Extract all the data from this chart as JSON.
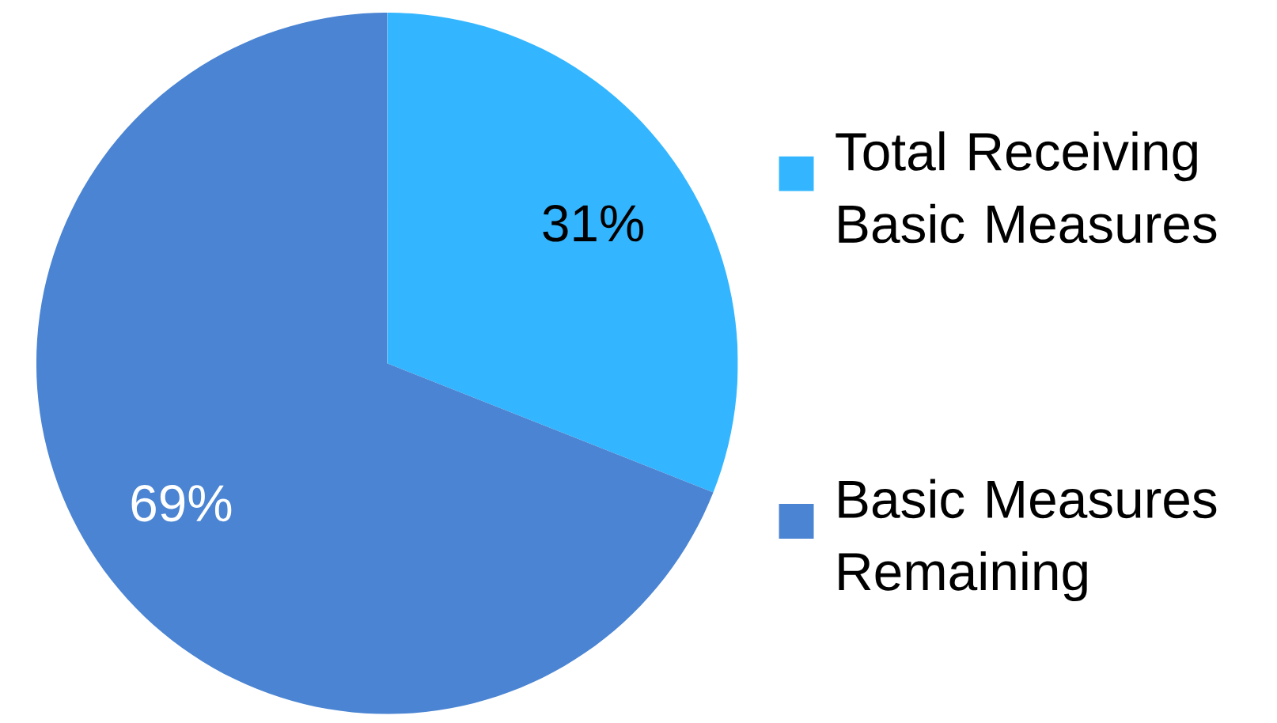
{
  "chart_data": {
    "type": "pie",
    "categories": [
      "Total Receiving Basic Measures",
      "Basic Measures Remaining"
    ],
    "values": [
      31,
      69
    ],
    "colors": [
      "#33b6ff",
      "#4a84d3"
    ],
    "value_labels": [
      "31%",
      "69%"
    ],
    "legend": "right"
  }
}
